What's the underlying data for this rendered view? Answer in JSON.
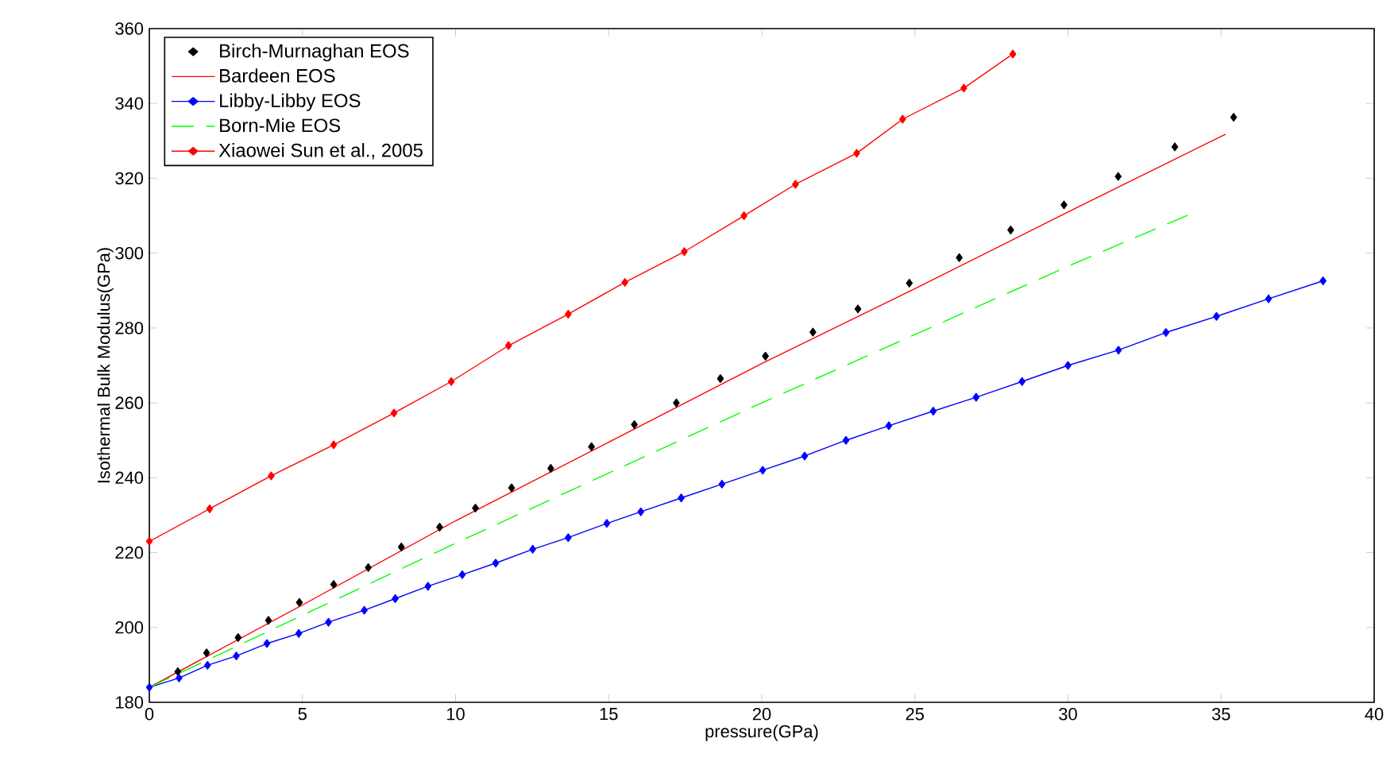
{
  "chart_data": {
    "type": "line",
    "xlabel": "pressure(GPa)",
    "ylabel": "Isothermal Bulk Modulus(GPa)",
    "xlim": [
      0,
      40
    ],
    "ylim": [
      180,
      360
    ],
    "xticks": [
      0,
      5,
      10,
      15,
      20,
      25,
      30,
      35,
      40
    ],
    "yticks": [
      180,
      200,
      220,
      240,
      260,
      280,
      300,
      320,
      340,
      360
    ],
    "grid": false,
    "legend": "top left",
    "series": [
      {
        "name": "Birch-Murnaghan EOS",
        "type": "scatter",
        "marker": "diamond",
        "color": "#000000",
        "x": [
          0.93,
          1.87,
          2.9,
          3.89,
          4.9,
          6.02,
          7.15,
          8.23,
          9.48,
          10.65,
          11.83,
          13.11,
          14.44,
          15.84,
          17.21,
          18.65,
          20.12,
          21.67,
          23.14,
          24.82,
          26.45,
          28.13,
          29.87,
          31.64,
          33.49,
          35.41
        ],
        "values": [
          188.2,
          193.2,
          197.3,
          201.9,
          206.7,
          211.5,
          216,
          221.5,
          226.8,
          231.9,
          237.3,
          242.5,
          248.3,
          254.2,
          260,
          266.5,
          272.5,
          278.9,
          285.1,
          292,
          298.8,
          306.2,
          312.9,
          320.5,
          328.4,
          336.3
        ]
      },
      {
        "name": "Bardeen EOS",
        "type": "line",
        "marker": "none",
        "line_style": "solid",
        "color": "#ff0000",
        "x": [
          0,
          5,
          10,
          15,
          20,
          25,
          30,
          35.15
        ],
        "values": [
          184,
          206,
          228.5,
          249.5,
          270.5,
          290.5,
          311,
          331.8
        ]
      },
      {
        "name": "Libby-Libby EOS",
        "type": "line",
        "marker": "diamond",
        "line_style": "solid",
        "color": "#0000ff",
        "x": [
          0,
          0.97,
          1.9,
          2.84,
          3.84,
          4.88,
          5.85,
          7.02,
          8.03,
          9.1,
          10.22,
          11.31,
          12.52,
          13.68,
          14.94,
          16.05,
          17.37,
          18.7,
          20.03,
          21.4,
          22.75,
          24.15,
          25.6,
          27,
          28.5,
          30,
          31.65,
          33.2,
          34.85,
          36.55,
          38.33
        ],
        "values": [
          184,
          186.5,
          189.9,
          192.4,
          195.7,
          198.4,
          201.4,
          204.6,
          207.7,
          211,
          214.1,
          217.2,
          220.9,
          224,
          227.8,
          230.9,
          234.6,
          238.3,
          242,
          245.8,
          250,
          253.9,
          257.8,
          261.5,
          265.7,
          270,
          274.1,
          278.8,
          283.1,
          287.8,
          292.6
        ]
      },
      {
        "name": "Born-Mie EOS",
        "type": "line",
        "marker": "none",
        "line_style": "dashed",
        "color": "#00ff00",
        "x": [
          0,
          10,
          20,
          30,
          34.04
        ],
        "values": [
          184,
          222.5,
          260,
          296.5,
          310.6
        ]
      },
      {
        "name": "Xiaowei Sun et al., 2005",
        "type": "line",
        "marker": "diamond",
        "line_style": "solid",
        "color": "#ff0000",
        "x": [
          0,
          1.97,
          3.98,
          6.02,
          7.99,
          9.86,
          11.73,
          13.68,
          15.53,
          17.47,
          19.42,
          21.1,
          23.1,
          24.6,
          26.6,
          28.2
        ],
        "values": [
          223,
          231.7,
          240.5,
          248.8,
          257.3,
          265.7,
          275.3,
          283.7,
          292.2,
          300.4,
          310,
          318.4,
          326.7,
          335.8,
          344.1,
          353.2
        ]
      }
    ]
  }
}
